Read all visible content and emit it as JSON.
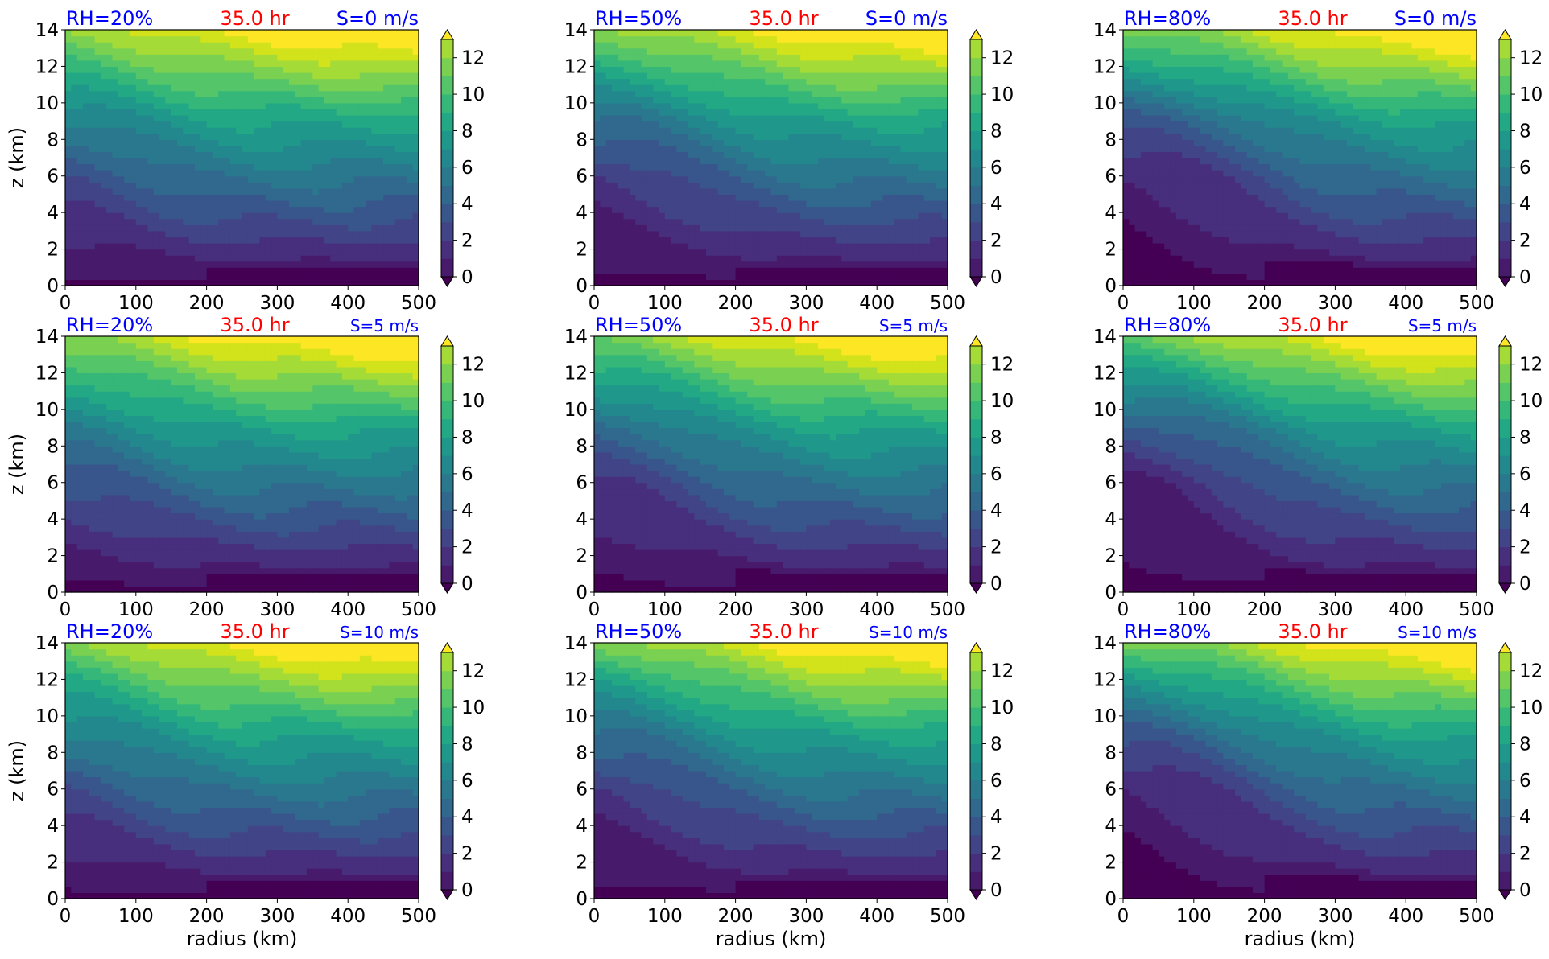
{
  "figure": {
    "colorbar_ticks": [
      "0",
      "2",
      "4",
      "6",
      "8",
      "10",
      "12"
    ],
    "xticks": [
      "0",
      "100",
      "200",
      "300",
      "400",
      "500"
    ],
    "yticks": [
      "0",
      "2",
      "4",
      "6",
      "8",
      "10",
      "12",
      "14"
    ],
    "xlabel": "radius (km)",
    "ylabel": "z (km)",
    "colors": {
      "label_blue": "#0000ff",
      "time_red": "#ff0000",
      "viridis_levels": [
        "#440154",
        "#481a6c",
        "#472f7d",
        "#414487",
        "#39568c",
        "#31688e",
        "#2a788e",
        "#23888e",
        "#1f988b",
        "#22a884",
        "#35b779",
        "#54c568",
        "#7ad151",
        "#a5db36",
        "#d2e21b",
        "#fde725"
      ]
    }
  },
  "chart_data": [
    {
      "type": "heatmap",
      "rh": "RH=20%",
      "time": "35.0 hr",
      "shear": "S=0 m/s",
      "xlim": [
        0,
        500
      ],
      "ylim": [
        0,
        14
      ],
      "levels": [
        0,
        1,
        2,
        3,
        4,
        5,
        6,
        7,
        8,
        9,
        10,
        11,
        12,
        13
      ]
    },
    {
      "type": "heatmap",
      "rh": "RH=50%",
      "time": "35.0 hr",
      "shear": "S=0 m/s",
      "xlim": [
        0,
        500
      ],
      "ylim": [
        0,
        14
      ],
      "levels": [
        0,
        1,
        2,
        3,
        4,
        5,
        6,
        7,
        8,
        9,
        10,
        11,
        12,
        13
      ]
    },
    {
      "type": "heatmap",
      "rh": "RH=80%",
      "time": "35.0 hr",
      "shear": "S=0 m/s",
      "xlim": [
        0,
        500
      ],
      "ylim": [
        0,
        14
      ],
      "levels": [
        0,
        1,
        2,
        3,
        4,
        5,
        6,
        7,
        8,
        9,
        10,
        11,
        12,
        13
      ]
    },
    {
      "type": "heatmap",
      "rh": "RH=20%",
      "time": "35.0 hr",
      "shear": "S=5 m/s",
      "xlim": [
        0,
        500
      ],
      "ylim": [
        0,
        14
      ],
      "levels": [
        0,
        1,
        2,
        3,
        4,
        5,
        6,
        7,
        8,
        9,
        10,
        11,
        12,
        13
      ]
    },
    {
      "type": "heatmap",
      "rh": "RH=50%",
      "time": "35.0 hr",
      "shear": "S=5 m/s",
      "xlim": [
        0,
        500
      ],
      "ylim": [
        0,
        14
      ],
      "levels": [
        0,
        1,
        2,
        3,
        4,
        5,
        6,
        7,
        8,
        9,
        10,
        11,
        12,
        13
      ]
    },
    {
      "type": "heatmap",
      "rh": "RH=80%",
      "time": "35.0 hr",
      "shear": "S=5 m/s",
      "xlim": [
        0,
        500
      ],
      "ylim": [
        0,
        14
      ],
      "levels": [
        0,
        1,
        2,
        3,
        4,
        5,
        6,
        7,
        8,
        9,
        10,
        11,
        12,
        13
      ]
    },
    {
      "type": "heatmap",
      "rh": "RH=20%",
      "time": "35.0 hr",
      "shear": "S=10 m/s",
      "xlim": [
        0,
        500
      ],
      "ylim": [
        0,
        14
      ],
      "levels": [
        0,
        1,
        2,
        3,
        4,
        5,
        6,
        7,
        8,
        9,
        10,
        11,
        12,
        13
      ]
    },
    {
      "type": "heatmap",
      "rh": "RH=50%",
      "time": "35.0 hr",
      "shear": "S=10 m/s",
      "xlim": [
        0,
        500
      ],
      "ylim": [
        0,
        14
      ],
      "levels": [
        0,
        1,
        2,
        3,
        4,
        5,
        6,
        7,
        8,
        9,
        10,
        11,
        12,
        13
      ]
    },
    {
      "type": "heatmap",
      "rh": "RH=80%",
      "time": "35.0 hr",
      "shear": "S=10 m/s",
      "xlim": [
        0,
        500
      ],
      "ylim": [
        0,
        14
      ],
      "levels": [
        0,
        1,
        2,
        3,
        4,
        5,
        6,
        7,
        8,
        9,
        10,
        11,
        12,
        13
      ]
    }
  ]
}
